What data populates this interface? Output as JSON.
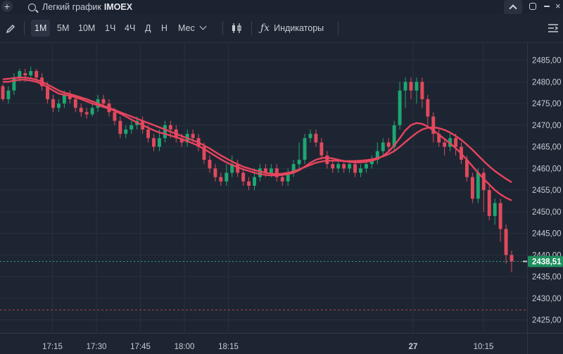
{
  "topbar": {
    "search_label": "Легкий график",
    "ticker": "IMOEX",
    "add_icon": "plus-icon",
    "search_icon": "search-icon",
    "collapse_icon": "chevron-up-icon",
    "maximize_icon": "maximize-icon",
    "minimize_icon": "minimize-icon",
    "close_icon": "close-icon"
  },
  "toolbar": {
    "draw_icon": "pencil-icon",
    "intervals": [
      "1М",
      "5М",
      "10М",
      "1Ч",
      "4Ч",
      "Д",
      "Н",
      "Мес"
    ],
    "active_interval": "1М",
    "chart_type_icon": "candles-icon",
    "indicators_icon": "function-icon",
    "indicators_label": "Индикаторы",
    "menu_icon": "collapse-menu-icon"
  },
  "colors": {
    "background": "#1e2532",
    "up": "#1ea672",
    "down": "#e04a5c",
    "ma": "#e8455e",
    "last_price": "#1e8f5e"
  },
  "chart_data": {
    "type": "candlestick",
    "title": "",
    "xlabel": "",
    "ylabel": "",
    "y_ticks": [
      "2425,00",
      "2430,00",
      "2435,00",
      "2440,00",
      "2445,00",
      "2450,00",
      "2455,00",
      "2460,00",
      "2465,00",
      "2470,00",
      "2475,00",
      "2480,00",
      "2485,00"
    ],
    "ylim": [
      2422,
      2489
    ],
    "x_ticks": [
      {
        "label": "17:15",
        "t": 17.25
      },
      {
        "label": "17:30",
        "t": 17.5
      },
      {
        "label": "17:45",
        "t": 17.75
      },
      {
        "label": "18:00",
        "t": 18.0
      },
      {
        "label": "18:15",
        "t": 18.25
      },
      {
        "label": "27",
        "t": 19.3
      },
      {
        "label": "10:15",
        "t": 19.7
      }
    ],
    "last_price": 2438.51,
    "last_price_label": "2438,51",
    "reference_level": 2427.3,
    "candles": [
      [
        2479,
        2476,
        2479.5,
        2475.5
      ],
      [
        2476,
        2478,
        2479,
        2475
      ],
      [
        2478,
        2481,
        2482,
        2477
      ],
      [
        2481,
        2482.5,
        2483,
        2480
      ],
      [
        2482,
        2481.5,
        2483,
        2480
      ],
      [
        2481.5,
        2482.5,
        2483.5,
        2481
      ],
      [
        2482.5,
        2481,
        2483,
        2480
      ],
      [
        2481,
        2479,
        2482,
        2478
      ],
      [
        2479,
        2476,
        2480,
        2475
      ],
      [
        2476,
        2474,
        2477,
        2473
      ],
      [
        2474,
        2475,
        2476,
        2473
      ],
      [
        2475,
        2477,
        2478,
        2474
      ],
      [
        2477,
        2476,
        2478,
        2475
      ],
      [
        2476,
        2474,
        2477,
        2473
      ],
      [
        2474,
        2473,
        2475,
        2472
      ],
      [
        2473,
        2472.5,
        2474,
        2471.5
      ],
      [
        2472.5,
        2474,
        2475,
        2472
      ],
      [
        2474,
        2476,
        2477,
        2473
      ],
      [
        2476,
        2475,
        2477,
        2474
      ],
      [
        2475,
        2473,
        2476,
        2472
      ],
      [
        2473,
        2471,
        2474,
        2470
      ],
      [
        2471,
        2468,
        2472,
        2467
      ],
      [
        2468,
        2469,
        2470,
        2467
      ],
      [
        2469,
        2470,
        2471,
        2468
      ],
      [
        2470,
        2471,
        2472,
        2469
      ],
      [
        2471,
        2469,
        2472,
        2468
      ],
      [
        2469,
        2467,
        2470,
        2466
      ],
      [
        2467,
        2465,
        2468,
        2464
      ],
      [
        2465,
        2467,
        2469,
        2464
      ],
      [
        2467,
        2470,
        2471,
        2466
      ],
      [
        2470,
        2469,
        2471,
        2467
      ],
      [
        2469,
        2467,
        2470,
        2466
      ],
      [
        2467,
        2466,
        2468,
        2465
      ],
      [
        2466,
        2468,
        2469,
        2465
      ],
      [
        2468,
        2467,
        2469,
        2466
      ],
      [
        2467,
        2465,
        2468,
        2464
      ],
      [
        2465,
        2462,
        2466,
        2461
      ],
      [
        2462,
        2460,
        2463,
        2459
      ],
      [
        2460,
        2458,
        2461,
        2457
      ],
      [
        2458,
        2457,
        2459,
        2456
      ],
      [
        2457,
        2459,
        2461,
        2456
      ],
      [
        2459,
        2461,
        2463,
        2458
      ],
      [
        2461,
        2459,
        2462,
        2458
      ],
      [
        2459,
        2457,
        2460,
        2456
      ],
      [
        2457,
        2456,
        2458,
        2455
      ],
      [
        2456,
        2458,
        2460,
        2455
      ],
      [
        2458,
        2460,
        2461,
        2457
      ],
      [
        2460,
        2459,
        2461,
        2458
      ],
      [
        2459,
        2460,
        2461,
        2458
      ],
      [
        2460,
        2458,
        2461,
        2457
      ],
      [
        2458,
        2457,
        2459,
        2456
      ],
      [
        2457,
        2459,
        2460,
        2456
      ],
      [
        2459,
        2461,
        2462,
        2458
      ],
      [
        2461,
        2462,
        2466,
        2460
      ],
      [
        2462,
        2467,
        2468,
        2461
      ],
      [
        2467,
        2468,
        2469,
        2466
      ],
      [
        2468,
        2466,
        2469,
        2465
      ],
      [
        2466,
        2463,
        2467,
        2462
      ],
      [
        2463,
        2461,
        2464,
        2460
      ],
      [
        2461,
        2460,
        2462,
        2459
      ],
      [
        2460,
        2461,
        2462,
        2459
      ],
      [
        2461,
        2460,
        2462,
        2459
      ],
      [
        2460,
        2461,
        2462,
        2459
      ],
      [
        2461,
        2459,
        2462,
        2458
      ],
      [
        2459,
        2460,
        2461,
        2458
      ],
      [
        2460,
        2461,
        2462,
        2459
      ],
      [
        2461,
        2462,
        2463,
        2460
      ],
      [
        2462,
        2464,
        2466,
        2461
      ],
      [
        2464,
        2466,
        2467,
        2463
      ],
      [
        2466,
        2465,
        2467,
        2464
      ],
      [
        2465,
        2470,
        2471,
        2464
      ],
      [
        2470,
        2478,
        2480,
        2469
      ],
      [
        2478,
        2480,
        2481,
        2474
      ],
      [
        2480,
        2478,
        2481,
        2476
      ],
      [
        2478,
        2480,
        2481,
        2475
      ],
      [
        2480,
        2476,
        2481,
        2474
      ],
      [
        2476,
        2472,
        2477,
        2470
      ],
      [
        2472,
        2468,
        2473,
        2466
      ],
      [
        2468,
        2466,
        2469,
        2465
      ],
      [
        2466,
        2465,
        2467,
        2463
      ],
      [
        2465,
        2467,
        2468,
        2464
      ],
      [
        2467,
        2465,
        2468,
        2463
      ],
      [
        2465,
        2462,
        2466,
        2461
      ],
      [
        2462,
        2458,
        2463,
        2457
      ],
      [
        2458,
        2453,
        2459,
        2452
      ],
      [
        2453,
        2459,
        2460,
        2452
      ],
      [
        2459,
        2455,
        2460,
        2450
      ],
      [
        2455,
        2449,
        2456,
        2448
      ],
      [
        2449,
        2452,
        2453,
        2447
      ],
      [
        2452,
        2446,
        2453,
        2443
      ],
      [
        2446,
        2440,
        2447,
        2438
      ],
      [
        2440,
        2438.51,
        2441,
        2436
      ]
    ],
    "ma_fast": [
      2480,
      2480,
      2480.3,
      2480.5,
      2480.5,
      2480.3,
      2480,
      2479.5,
      2478.8,
      2478,
      2477.3,
      2477,
      2476.8,
      2476.4,
      2476,
      2475.5,
      2475,
      2474.6,
      2474.2,
      2473.8,
      2473.3,
      2472.7,
      2472,
      2471.3,
      2470.6,
      2470,
      2469.4,
      2468.8,
      2468.3,
      2468,
      2467.6,
      2467.2,
      2466.8,
      2466.3,
      2465.8,
      2465.2,
      2464.5,
      2463.7,
      2462.9,
      2462.1,
      2461.4,
      2460.8,
      2460.3,
      2459.8,
      2459.4,
      2459,
      2458.7,
      2458.5,
      2458.4,
      2458.4,
      2458.5,
      2458.7,
      2459,
      2459.6,
      2460.4,
      2461.3,
      2462,
      2462.4,
      2462.5,
      2462.3,
      2462,
      2461.7,
      2461.5,
      2461.4,
      2461.4,
      2461.5,
      2461.8,
      2462.2,
      2462.9,
      2463.9,
      2465.3,
      2467,
      2468.8,
      2470,
      2470.5,
      2470.3,
      2469.7,
      2468.8,
      2467.8,
      2466.8,
      2465.8,
      2464.7,
      2463.4,
      2462,
      2460.5,
      2459,
      2457.6,
      2456.3,
      2455,
      2454,
      2453.2,
      2452.6
    ],
    "ma_slow": [
      2480.6,
      2480.7,
      2480.9,
      2481,
      2481,
      2480.8,
      2480.5,
      2480,
      2479.4,
      2478.7,
      2478,
      2477.5,
      2477.2,
      2476.8,
      2476.4,
      2476,
      2475.5,
      2475,
      2474.5,
      2474,
      2473.5,
      2473,
      2472.5,
      2472,
      2471.5,
      2471,
      2470.5,
      2470,
      2469.5,
      2469,
      2468.5,
      2468,
      2467.5,
      2467,
      2466.5,
      2466,
      2465.3,
      2464.6,
      2463.8,
      2463,
      2462.3,
      2461.6,
      2461,
      2460.4,
      2460,
      2459.6,
      2459.3,
      2459,
      2458.8,
      2458.7,
      2458.8,
      2459,
      2459.3,
      2459.8,
      2460.3,
      2460.8,
      2461.3,
      2461.6,
      2461.8,
      2461.8,
      2461.8,
      2461.7,
      2461.7,
      2461.7,
      2461.8,
      2461.9,
      2462.1,
      2462.4,
      2462.8,
      2463.3,
      2464,
      2465,
      2466.1,
      2467.2,
      2468.2,
      2469,
      2469.4,
      2469.5,
      2469.3,
      2468.9,
      2468.3,
      2467.5,
      2466.6,
      2465.5,
      2464.3,
      2463,
      2461.7,
      2460.5,
      2459.4,
      2458.5,
      2457.6,
      2456.8
    ]
  }
}
